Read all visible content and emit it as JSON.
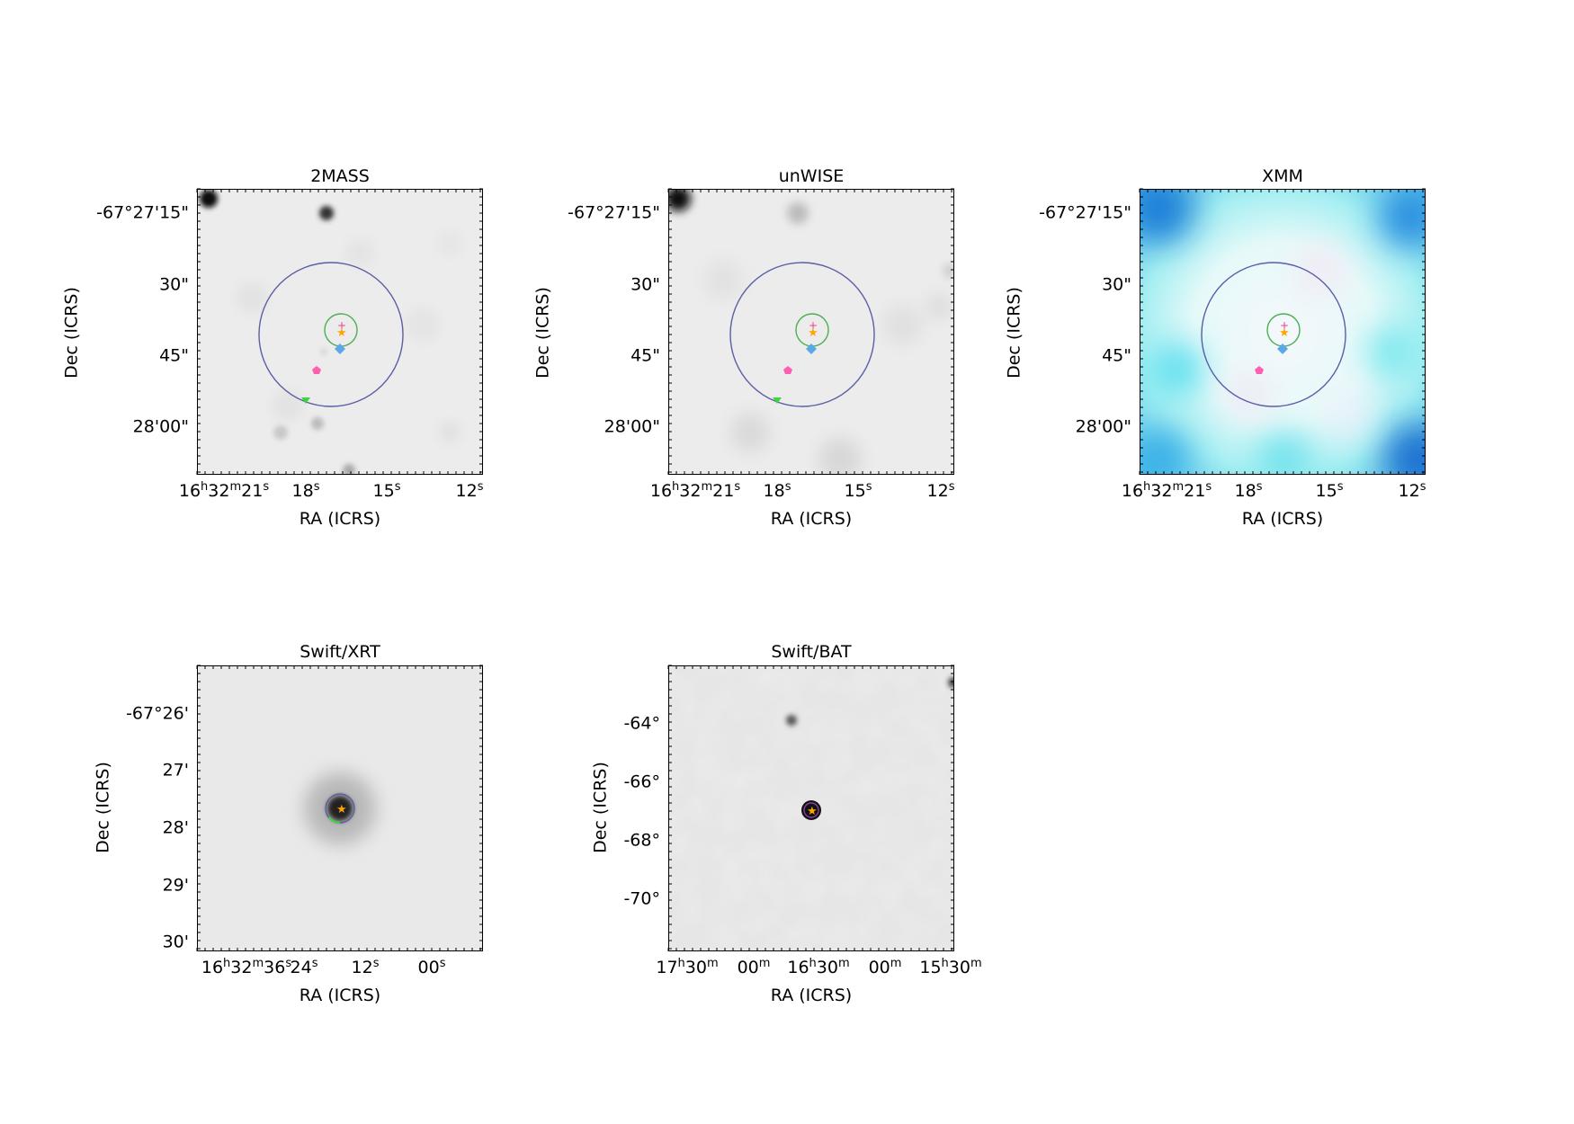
{
  "panels": [
    {
      "id": "2mass",
      "title": "2MASS",
      "xlabel": "RA (ICRS)",
      "ylabel": "Dec (ICRS)",
      "ra_ticks": [
        "16h32m21s",
        "18s",
        "15s",
        "12s"
      ],
      "dec_ticks": [
        "-67°27'15\"",
        "30\"",
        "45\"",
        "28'00\""
      ],
      "background": "grayscale",
      "markers": [
        "star",
        "plus",
        "diamond",
        "pentagon",
        "triangle-down",
        "circle-large",
        "circle-small"
      ]
    },
    {
      "id": "unwise",
      "title": "unWISE",
      "xlabel": "RA (ICRS)",
      "ylabel": "Dec (ICRS)",
      "ra_ticks": [
        "16h32m21s",
        "18s",
        "15s",
        "12s"
      ],
      "dec_ticks": [
        "-67°27'15\"",
        "30\"",
        "45\"",
        "28'00\""
      ],
      "background": "grayscale",
      "markers": [
        "star",
        "plus",
        "diamond",
        "pentagon",
        "triangle-down",
        "circle-large",
        "circle-small"
      ]
    },
    {
      "id": "xmm",
      "title": "XMM",
      "xlabel": "RA (ICRS)",
      "ylabel": "Dec (ICRS)",
      "ra_ticks": [
        "16h32m21s",
        "18s",
        "15s",
        "12s"
      ],
      "dec_ticks": [
        "-67°27'15\"",
        "30\"",
        "45\"",
        "28'00\""
      ],
      "background": "rgb-cyan-blue",
      "markers": [
        "star",
        "plus",
        "diamond",
        "pentagon",
        "circle-large",
        "circle-small"
      ]
    },
    {
      "id": "swift-xrt",
      "title": "Swift/XRT",
      "xlabel": "RA (ICRS)",
      "ylabel": "Dec (ICRS)",
      "ra_ticks": [
        "16h32m36s",
        "24s",
        "12s",
        "00s"
      ],
      "dec_ticks": [
        "-67°26'",
        "27'",
        "28'",
        "29'",
        "30'"
      ],
      "background": "grayscale",
      "markers": [
        "star",
        "circle-large",
        "circle-field"
      ]
    },
    {
      "id": "swift-bat",
      "title": "Swift/BAT",
      "xlabel": "RA (ICRS)",
      "ylabel": "Dec (ICRS)",
      "ra_ticks": [
        "17h30m",
        "00m",
        "16h30m",
        "00m",
        "15h30m"
      ],
      "dec_ticks": [
        "-64°",
        "-66°",
        "-68°",
        "-70°"
      ],
      "background": "grayscale",
      "markers": [
        "star",
        "circle-small"
      ]
    }
  ],
  "colors": {
    "circle_large": "#5b5ea6",
    "circle_small": "#4caf50",
    "star": "#ffa500",
    "plus": "#e8408a",
    "diamond": "#5aa9e6",
    "pentagon": "#ff5fb0",
    "triangle": "#3fd43f",
    "xrt_field": "#66e066"
  }
}
